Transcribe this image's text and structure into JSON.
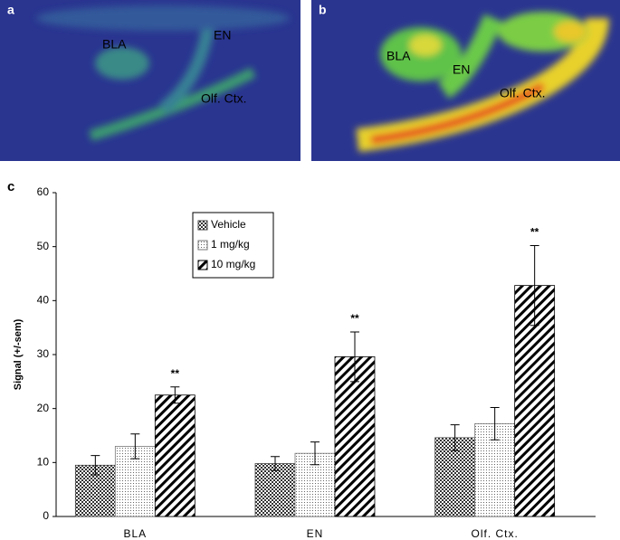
{
  "panels": [
    {
      "label": "a",
      "annotations": [
        "BLA",
        "EN",
        "Olf. Ctx."
      ]
    },
    {
      "label": "b",
      "annotations": [
        "BLA",
        "EN",
        "Olf. Ctx."
      ]
    }
  ],
  "chart_data": {
    "type": "bar",
    "panel_label": "c",
    "ylabel": "Signal (+/-sem)",
    "categories": [
      "BLA",
      "EN",
      "Olf. Ctx."
    ],
    "series": [
      {
        "name": "Vehicle",
        "color": "#444444",
        "pattern": "checker",
        "values": [
          9.5,
          9.8,
          14.6
        ],
        "errors": [
          1.8,
          1.3,
          2.4
        ]
      },
      {
        "name": "1 mg/kg",
        "color": "#777777",
        "pattern": "dots",
        "values": [
          13,
          11.7,
          17.2
        ],
        "errors": [
          2.3,
          2.1,
          3.0
        ]
      },
      {
        "name": "10 mg/kg",
        "color": "#000000",
        "pattern": "hatch",
        "values": [
          22.5,
          29.6,
          42.8
        ],
        "errors": [
          1.5,
          4.6,
          7.4
        ],
        "significance": [
          "**",
          "**",
          "**"
        ]
      }
    ],
    "ylim": [
      0,
      60
    ],
    "yticks": [
      0,
      10,
      20,
      30,
      40,
      50,
      60
    ],
    "legend": "upper left",
    "grid": false
  }
}
